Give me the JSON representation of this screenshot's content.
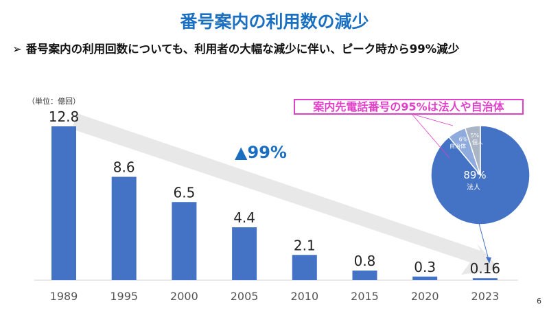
{
  "title": "番号案内の利用数の減少",
  "subtitle": "➢ 番号案内の利用回数についても、利用者の大幅な減少に伴い、ピーク時から99%減少",
  "unit_label": "（単位：億回）",
  "reduction_label": "▲99%",
  "callout": "案内先電話番号の95%は法人や自治体",
  "page_number": "6",
  "colors": {
    "bar": "#4472c4",
    "title": "#1a6fc0",
    "callout": "#e040c8"
  },
  "chart_data": [
    {
      "type": "bar",
      "title": "",
      "xlabel": "",
      "ylabel": "億回",
      "ylim": [
        0,
        13
      ],
      "categories": [
        "1989",
        "1995",
        "2000",
        "2005",
        "2010",
        "2015",
        "2020",
        "2023"
      ],
      "values": [
        12.8,
        8.6,
        6.5,
        4.4,
        2.1,
        0.8,
        0.3,
        0.16
      ],
      "labels": [
        "12.8",
        "8.6",
        "6.5",
        "4.4",
        "2.1",
        "0.8",
        "0.3",
        "0.16"
      ]
    },
    {
      "type": "pie",
      "slices": [
        {
          "name": "法人",
          "value": 89,
          "label": "89%",
          "color": "#4472c4"
        },
        {
          "name": "自治体",
          "value": 6,
          "label": "6%",
          "color": "#8faadc"
        },
        {
          "name": "個人",
          "value": 5,
          "label": "5%",
          "color": "#a9b4c4"
        }
      ]
    }
  ]
}
